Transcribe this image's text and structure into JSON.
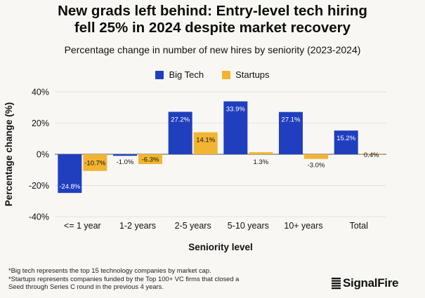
{
  "title_line1": "New grads left behind: Entry-level tech hiring",
  "title_line2": "fell 25% in 2024 despite market recovery",
  "colors": {
    "big_tech": "#1f3fbf",
    "startups": "#f2b531",
    "grid": "#e3e3e3",
    "axis": "#555555"
  },
  "chart_data": {
    "type": "bar",
    "title": "Percentage change in number of new hires by seniority (2023-2024)",
    "xlabel": "Seniority level",
    "ylabel": "Percentage change (%)",
    "ylim": [
      -40,
      40
    ],
    "yticks": [
      "-40%",
      "-20%",
      "0%",
      "20%",
      "40%"
    ],
    "yticks_values": [
      -40,
      -20,
      0,
      20,
      40
    ],
    "categories": [
      "<= 1 year",
      "1-2 years",
      "2-5 years",
      "5-10 years",
      "10+ years",
      "Total"
    ],
    "series": [
      {
        "name": "Big Tech",
        "values": [
          -24.8,
          -1.0,
          27.2,
          33.9,
          27.1,
          15.2
        ],
        "labels": [
          "-24.8%",
          "-1.0%",
          "27.2%",
          "33.9%",
          "27.1%",
          "15.2%"
        ]
      },
      {
        "name": "Startups",
        "values": [
          -10.7,
          -6.3,
          14.1,
          1.3,
          -3.0,
          0.4
        ],
        "labels": [
          "-10.7%",
          "-6.3%",
          "14.1%",
          "1.3%",
          "-3.0%",
          "0.4%"
        ]
      }
    ]
  },
  "footnote_line1": "*Big tech represents the top 15 technology companies by market cap.",
  "footnote_line2": "*Startups represents companies funded by the Top 100+ VC firms that closed a",
  "footnote_line3": "Seed through Series C round in the previous 4 years.",
  "brand": "SignalFire"
}
